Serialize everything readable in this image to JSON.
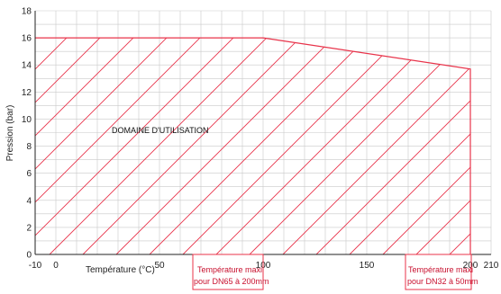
{
  "chart_data": {
    "type": "area",
    "title": "",
    "xlabel": "Température (°C)",
    "ylabel": "Pression (bar)",
    "xlim": [
      -10,
      210
    ],
    "ylim": [
      0,
      18
    ],
    "x_ticks": [
      -10,
      0,
      50,
      100,
      150,
      200,
      210
    ],
    "y_ticks": [
      0,
      2,
      4,
      6,
      8,
      10,
      12,
      14,
      16,
      18
    ],
    "grid": true,
    "boundary": {
      "x": [
        -10,
        100,
        200,
        200
      ],
      "y": [
        16,
        16,
        13.7,
        0
      ]
    },
    "region_label": "DOMAINE D'UTILISATION",
    "annotations": [
      {
        "x": 100,
        "lines": [
          "Température maxi",
          "pour DN65 à 200mm"
        ]
      },
      {
        "x": 200,
        "lines": [
          "Température maxi",
          "pour DN32 à 50mm"
        ]
      }
    ],
    "colors": {
      "boundary": "#e8334a",
      "grid": "#c9c9c9",
      "annotation": "#c8102e"
    }
  }
}
